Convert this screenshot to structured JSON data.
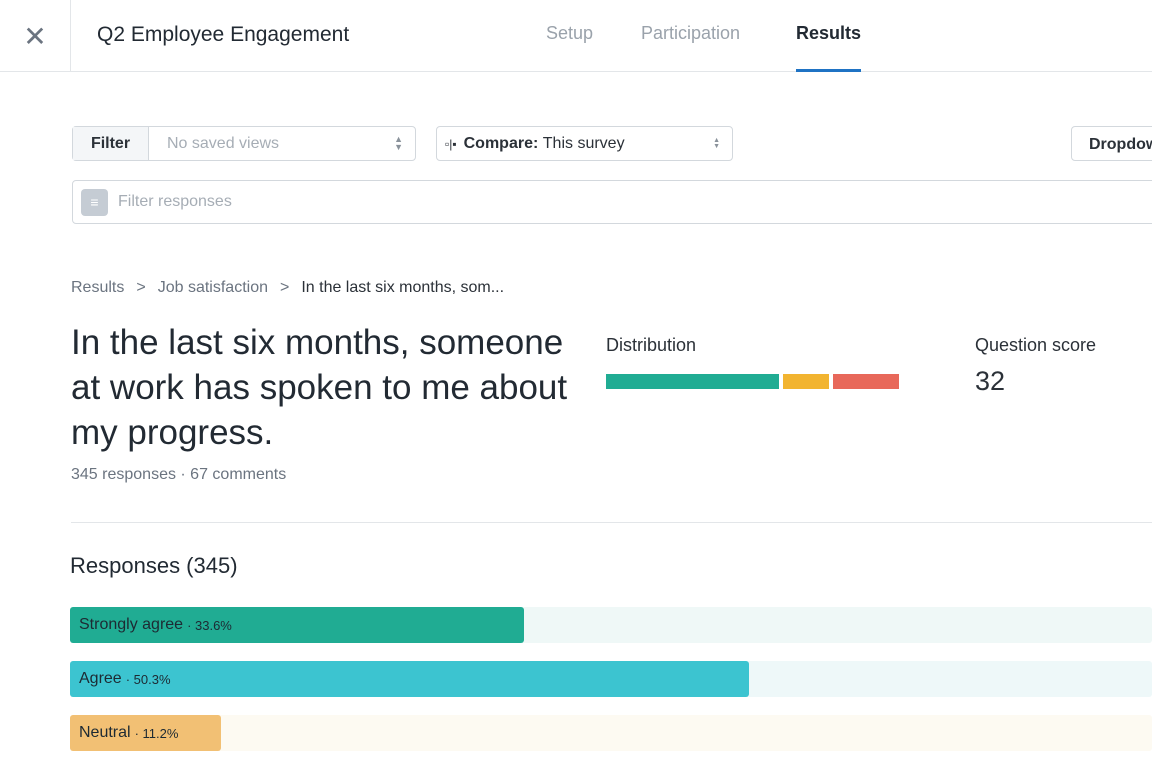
{
  "header": {
    "title": "Q2 Employee Engagement",
    "close_icon": "close-icon",
    "tabs": [
      {
        "label": "Setup"
      },
      {
        "label": "Participation"
      },
      {
        "label": "Results",
        "active": true
      }
    ],
    "accent": "#1f73c4"
  },
  "toolbar": {
    "filter_label": "Filter",
    "saved_views_placeholder": "No saved views",
    "compare_prefix": "Compare:",
    "compare_value": "This survey",
    "dropdown_label": "Dropdown",
    "search_placeholder": "Filter responses"
  },
  "breadcrumb": [
    "Results",
    "Job satisfaction",
    "In the last six months, som..."
  ],
  "question": {
    "text": "In the last six months, someone at work has spoken to me about my progress.",
    "meta": "345 responses · 67 comments"
  },
  "distribution": {
    "label": "Distribution",
    "segments": [
      {
        "fraction": 0.6,
        "color": "#20ac93"
      },
      {
        "fraction": 0.16,
        "color": "#f2b430"
      },
      {
        "fraction": 0.23,
        "color": "#e8685a"
      }
    ]
  },
  "score": {
    "label": "Question score",
    "value": "32"
  },
  "responses": {
    "heading": "Responses (345)",
    "items": [
      {
        "label": "Strongly agree",
        "pct": "· 33.6%",
        "value": 33.6,
        "color": "#20ac93",
        "track": "#eff8f7"
      },
      {
        "label": "Agree",
        "pct": "· 50.3%",
        "value": 50.3,
        "color": "#3cc4d0",
        "track": "#eef8f9"
      },
      {
        "label": "Neutral",
        "pct": "· 11.2%",
        "value": 11.2,
        "color": "#f2c074",
        "track": "#fdfaf2"
      }
    ]
  }
}
